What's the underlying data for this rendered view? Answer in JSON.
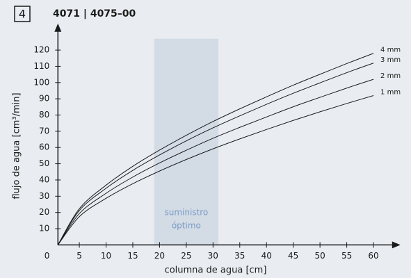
{
  "chart_data": {
    "type": "line",
    "badge": "4",
    "title": "4071 | 4075–00",
    "xlabel": "columna de agua [cm]",
    "ylabel": "flujo de agua [cm³/min]",
    "x": [
      1,
      5,
      10,
      15,
      20,
      25,
      30,
      35,
      40,
      45,
      50,
      55,
      60
    ],
    "series": [
      {
        "name": "4 mm",
        "color": "#1a1a1a",
        "values": [
          0,
          22.3,
          36.8,
          48.4,
          58.4,
          67.5,
          76.0,
          83.8,
          91.2,
          98.4,
          105.1,
          111.7,
          118
        ]
      },
      {
        "name": "3 mm",
        "color": "#1a1a1a",
        "values": [
          0,
          21.2,
          34.9,
          45.9,
          55.4,
          64.1,
          72.1,
          79.5,
          86.6,
          93.4,
          99.8,
          106.1,
          112
        ]
      },
      {
        "name": "2 mm",
        "color": "#1a1a1a",
        "values": [
          0,
          19.3,
          31.8,
          41.8,
          50.5,
          58.3,
          65.7,
          72.4,
          78.8,
          85.1,
          90.9,
          96.6,
          102
        ]
      },
      {
        "name": "1 mm",
        "color": "#1a1a1a",
        "values": [
          0,
          17.4,
          28.7,
          37.7,
          45.5,
          52.6,
          59.2,
          65.3,
          71.1,
          76.7,
          82.0,
          87.1,
          92
        ]
      }
    ],
    "band": {
      "x": [
        19,
        31
      ],
      "top": 127,
      "color": "#d3dbe5",
      "label": [
        "suministro",
        "óptimo"
      ],
      "label_color": "#7a9cc6"
    },
    "xlim": [
      1,
      64
    ],
    "ylim": [
      0,
      133
    ],
    "xticks": [
      0,
      5,
      10,
      15,
      20,
      25,
      30,
      35,
      40,
      45,
      50,
      55,
      60
    ],
    "yticks": [
      10,
      20,
      30,
      40,
      50,
      60,
      70,
      80,
      90,
      100,
      110,
      120
    ]
  }
}
